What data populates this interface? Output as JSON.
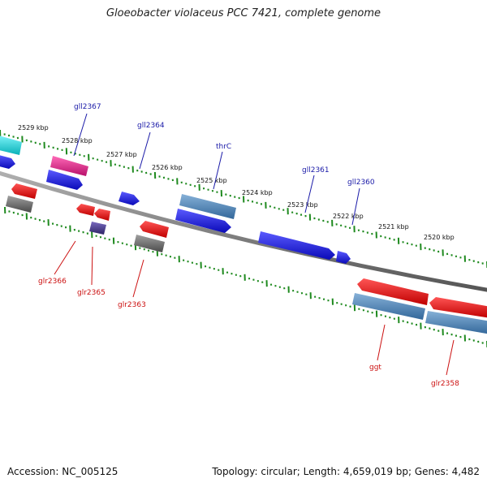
{
  "title": "Gloeobacter violaceus PCC 7421, complete genome",
  "footer": {
    "accession": "Accession: NC_005125",
    "topology": "Topology: circular; Length: 4,659,019 bp; Genes: 4,482"
  },
  "colors": {
    "backbone": "#7a7a7a",
    "tick": "#1f8a1f",
    "forward_label": "#1a1aa8",
    "reverse_label": "#cc1111",
    "gene_blue": "#1a1ae0",
    "gene_red": "#ee1111",
    "gene_steel": "#4f86b8",
    "gene_gray": "#6e6e6e",
    "gene_pink": "#e8208a",
    "gene_cyan": "#10d8e0",
    "gene_purple": "#4a3a8a"
  },
  "kbp_labels": [
    {
      "text": "2529 kbp",
      "kbp": 2529
    },
    {
      "text": "2528 kbp",
      "kbp": 2528
    },
    {
      "text": "2527 kbp",
      "kbp": 2527
    },
    {
      "text": "2526 kbp",
      "kbp": 2526
    },
    {
      "text": "2525 kbp",
      "kbp": 2525
    },
    {
      "text": "2524 kbp",
      "kbp": 2524
    },
    {
      "text": "2523 kbp",
      "kbp": 2523
    },
    {
      "text": "2522 kbp",
      "kbp": 2522
    },
    {
      "text": "2521 kbp",
      "kbp": 2521
    },
    {
      "text": "2520 kbp",
      "kbp": 2520
    }
  ],
  "genes": [
    {
      "name": "gll2367",
      "label": "gll2367",
      "strand": "forward",
      "color": "gene_pink",
      "labeled": true
    },
    {
      "name": "gll2364",
      "label": "gll2364",
      "strand": "forward",
      "color": "gene_blue",
      "labeled": true
    },
    {
      "name": "thrC",
      "label": "thrC",
      "strand": "forward",
      "color": "gene_steel",
      "labeled": true
    },
    {
      "name": "gll2361",
      "label": "gll2361",
      "strand": "forward",
      "color": "gene_blue",
      "labeled": true
    },
    {
      "name": "gll2360",
      "label": "gll2360",
      "strand": "forward",
      "color": "gene_blue",
      "labeled": true
    },
    {
      "name": "glr2366",
      "label": "glr2366",
      "strand": "reverse",
      "color": "gene_gray",
      "labeled": true
    },
    {
      "name": "glr2365",
      "label": "glr2365",
      "strand": "reverse",
      "color": "gene_purple",
      "labeled": true
    },
    {
      "name": "glr2363",
      "label": "glr2363",
      "strand": "reverse",
      "color": "gene_gray",
      "labeled": true
    },
    {
      "name": "ggt",
      "label": "ggt",
      "strand": "reverse",
      "color": "gene_steel",
      "labeled": true
    },
    {
      "name": "glr2358",
      "label": "glr2358",
      "strand": "reverse",
      "color": "gene_steel",
      "labeled": true
    }
  ]
}
